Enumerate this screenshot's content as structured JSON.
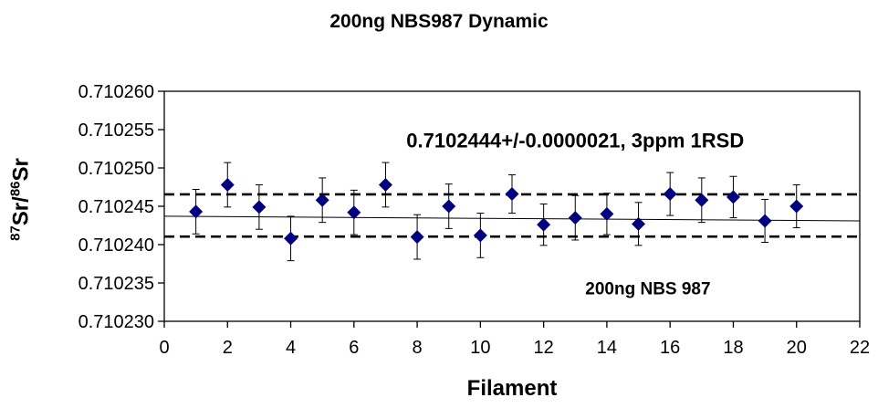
{
  "chart_data": {
    "type": "scatter",
    "title": "200ng NBS987 Dynamic",
    "xlabel": "Filament",
    "ylabel": {
      "iso1_mass": "87",
      "iso1": "Sr",
      "sep": "/",
      "iso2_mass": "86",
      "iso2": "Sr"
    },
    "xlim": [
      0,
      22
    ],
    "ylim": [
      0.71023,
      0.71026
    ],
    "x_ticks": [
      "0",
      "2",
      "4",
      "6",
      "8",
      "10",
      "12",
      "14",
      "16",
      "18",
      "20",
      "22"
    ],
    "y_ticks": [
      "0.710230",
      "0.710235",
      "0.710240",
      "0.710245",
      "0.710250",
      "0.710255",
      "0.710260"
    ],
    "grid": false,
    "marker_color": "#00007f",
    "points": [
      {
        "x": 1,
        "y": 0.7102443,
        "err": 2.9e-06
      },
      {
        "x": 2,
        "y": 0.7102478,
        "err": 2.9e-06
      },
      {
        "x": 3,
        "y": 0.7102449,
        "err": 2.9e-06
      },
      {
        "x": 4,
        "y": 0.7102408,
        "err": 2.9e-06
      },
      {
        "x": 5,
        "y": 0.7102458,
        "err": 2.9e-06
      },
      {
        "x": 6,
        "y": 0.7102442,
        "err": 2.9e-06
      },
      {
        "x": 7,
        "y": 0.7102478,
        "err": 2.9e-06
      },
      {
        "x": 8,
        "y": 0.710241,
        "err": 2.9e-06
      },
      {
        "x": 9,
        "y": 0.710245,
        "err": 2.9e-06
      },
      {
        "x": 10,
        "y": 0.7102412,
        "err": 2.9e-06
      },
      {
        "x": 11,
        "y": 0.7102466,
        "err": 2.5e-06
      },
      {
        "x": 12,
        "y": 0.7102426,
        "err": 2.7e-06
      },
      {
        "x": 13,
        "y": 0.7102435,
        "err": 2.9e-06
      },
      {
        "x": 14,
        "y": 0.710244,
        "err": 2.7e-06
      },
      {
        "x": 15,
        "y": 0.7102427,
        "err": 2.8e-06
      },
      {
        "x": 16,
        "y": 0.7102466,
        "err": 2.8e-06
      },
      {
        "x": 17,
        "y": 0.7102458,
        "err": 2.9e-06
      },
      {
        "x": 18,
        "y": 0.7102462,
        "err": 2.7e-06
      },
      {
        "x": 19,
        "y": 0.7102431,
        "err": 2.8e-06
      },
      {
        "x": 20,
        "y": 0.710245,
        "err": 2.8e-06
      }
    ],
    "mean_lines": [
      0.71024655,
      0.71024105
    ],
    "trend_line": {
      "x": [
        0,
        22
      ],
      "y": [
        0.7102437,
        0.7102431
      ]
    },
    "annotations": [
      {
        "text": "0.7102444+/-0.0000021, 3ppm 1RSD",
        "x": 13,
        "y": 0.7102527
      },
      {
        "text": "200ng NBS 987",
        "x": 15.3,
        "y": 0.7102335
      }
    ]
  }
}
